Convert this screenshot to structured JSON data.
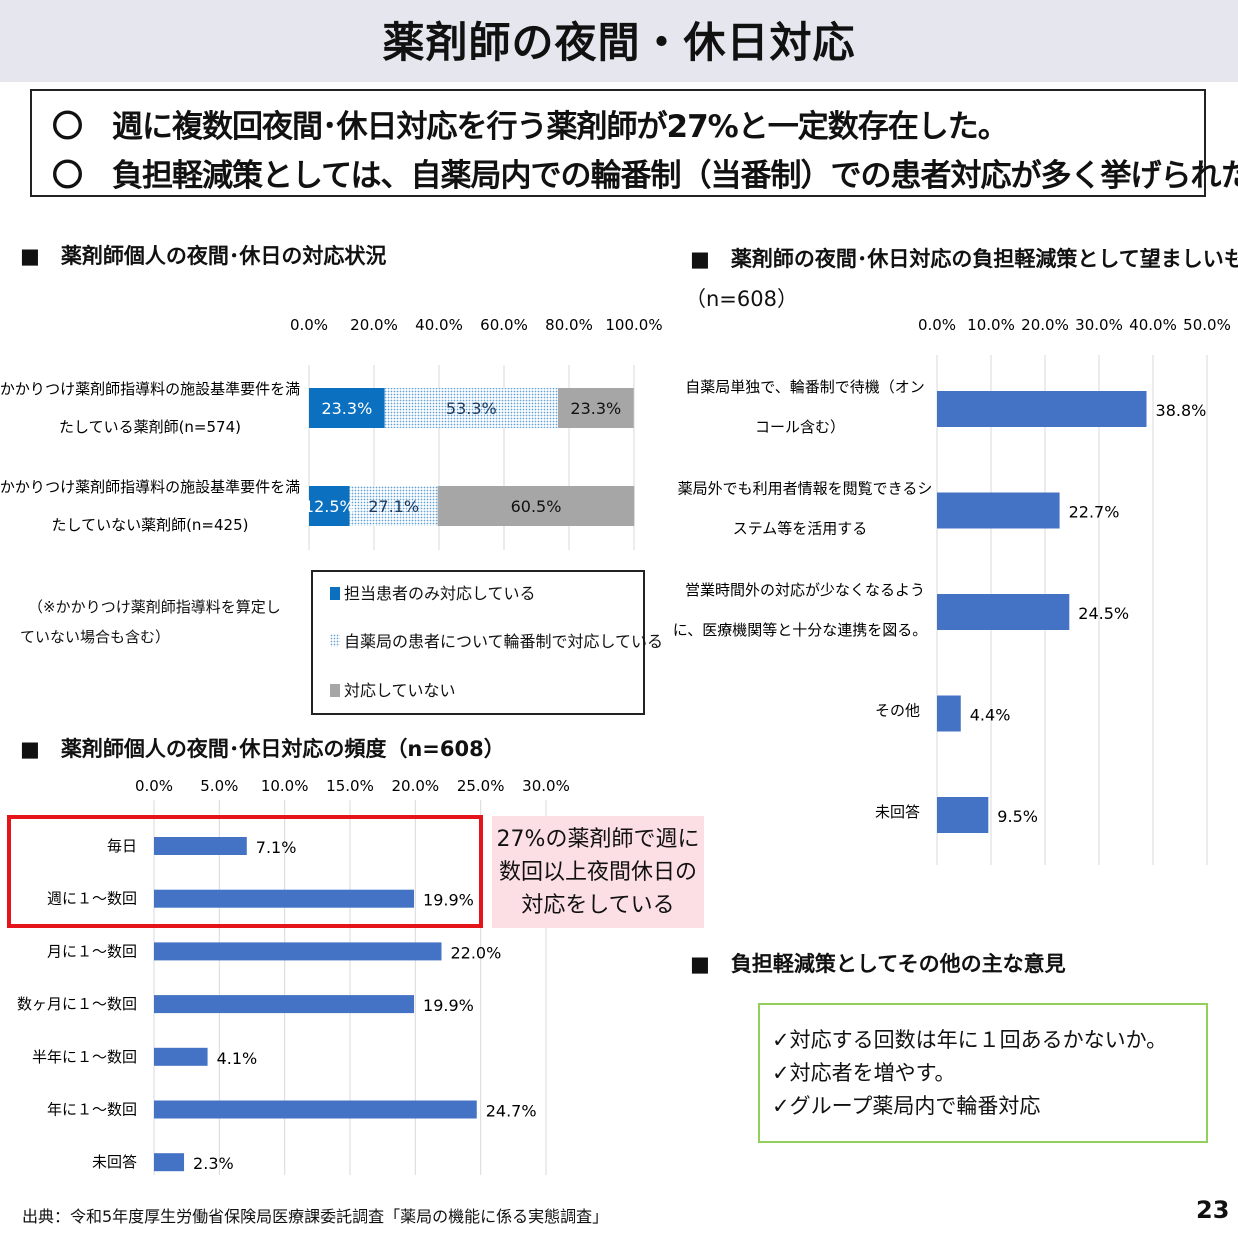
{
  "title": "薬剤師の夜間・休日対応",
  "summary": [
    "〇　週に複数回夜間･休日対応を行う薬剤師が27%と一定数存在した。",
    "〇　負担軽減策としては、自薬局内での輪番制（当番制）での患者対応が多く挙げられた。"
  ],
  "section1": {
    "heading": "■　薬剤師個人の夜間･休日の対応状況"
  },
  "section2": {
    "heading": "■　薬剤師の夜間･休日対応の負担軽減策として望ましいもの",
    "heading_n": "（n=608）"
  },
  "section3": {
    "heading": "■　薬剤師個人の夜間･休日対応の頻度（n=608）"
  },
  "section4": {
    "heading": "■　負担軽減策としてその他の主な意見"
  },
  "chart1_note": [
    "（※かかりつけ薬剤師指導料を算定し",
    "ていない場合も含む）"
  ],
  "callout": [
    "27%の薬剤師で週に",
    "数回以上夜間休日の",
    "対応をしている"
  ],
  "opinions": [
    "✓対応する回数は年に１回あるかないか。",
    "✓対応者を増やす。",
    "✓グループ薬局内で輪番対応"
  ],
  "source": "出典：令和5年度厚生労働省保険局医療課委託調査「薬局の機能に係る実態調査」",
  "page_number": "23",
  "colors": {
    "blue": "#4472c4",
    "dark_blue": "#0b70c0",
    "pattern_blue": "#62a4d8",
    "gray": "#a6a6a6",
    "red": "#e5141b",
    "green": "#92cf5c",
    "pink": "#fbdfe4"
  },
  "chart_data": [
    {
      "type": "bar",
      "orientation": "horizontal-stacked",
      "ticks": [
        "0.0%",
        "20.0%",
        "40.0%",
        "60.0%",
        "80.0%",
        "100.0%"
      ],
      "xlim": [
        0,
        100
      ],
      "categories": [
        [
          "かかりつけ薬剤師指導料の施設基準要件を満",
          "たしている薬剤師(n=574)"
        ],
        [
          "かかりつけ薬剤師指導料の施設基準要件を満",
          "たしていない薬剤師(n=425)"
        ]
      ],
      "series": [
        {
          "name": "担当患者のみ対応している",
          "values": [
            23.3,
            12.5
          ],
          "labels": [
            "23.3%",
            "12.5%"
          ]
        },
        {
          "name": "自薬局の患者について輪番制で対応している",
          "values": [
            53.3,
            27.1
          ],
          "labels": [
            "53.3%",
            "27.1%"
          ]
        },
        {
          "name": "対応していない",
          "values": [
            23.3,
            60.5
          ],
          "labels": [
            "23.3%",
            "60.5%"
          ]
        }
      ],
      "legend": "bottom-boxed",
      "grid": true
    },
    {
      "type": "bar",
      "orientation": "horizontal",
      "ticks": [
        "0.0%",
        "5.0%",
        "10.0%",
        "15.0%",
        "20.0%",
        "25.0%",
        "30.0%"
      ],
      "xlim": [
        0,
        30
      ],
      "categories": [
        "毎日",
        "週に１～数回",
        "月に１～数回",
        "数ヶ月に１～数回",
        "半年に１～数回",
        "年に１～数回",
        "未回答"
      ],
      "values": [
        7.1,
        19.9,
        22.0,
        19.9,
        4.1,
        24.7,
        2.3
      ],
      "labels": [
        "7.1%",
        "19.9%",
        "22.0%",
        "19.9%",
        "4.1%",
        "24.7%",
        "2.3%"
      ],
      "grid": true
    },
    {
      "type": "bar",
      "orientation": "horizontal",
      "ticks": [
        "0.0%",
        "10.0%",
        "20.0%",
        "30.0%",
        "40.0%",
        "50.0%"
      ],
      "xlim": [
        0,
        50
      ],
      "categories": [
        [
          "自薬局単独で、輪番制で待機（オン",
          "コール含む）"
        ],
        [
          "薬局外でも利用者情報を閲覧できるシ",
          "ステム等を活用する"
        ],
        [
          "営業時間外の対応が少なくなるよう",
          "に、医療機関等と十分な連携を図る。"
        ],
        [
          "その他"
        ],
        [
          "未回答"
        ]
      ],
      "values": [
        38.8,
        22.7,
        24.5,
        4.4,
        9.5
      ],
      "labels": [
        "38.8%",
        "22.7%",
        "24.5%",
        "4.4%",
        "9.5%"
      ],
      "grid": true
    }
  ]
}
